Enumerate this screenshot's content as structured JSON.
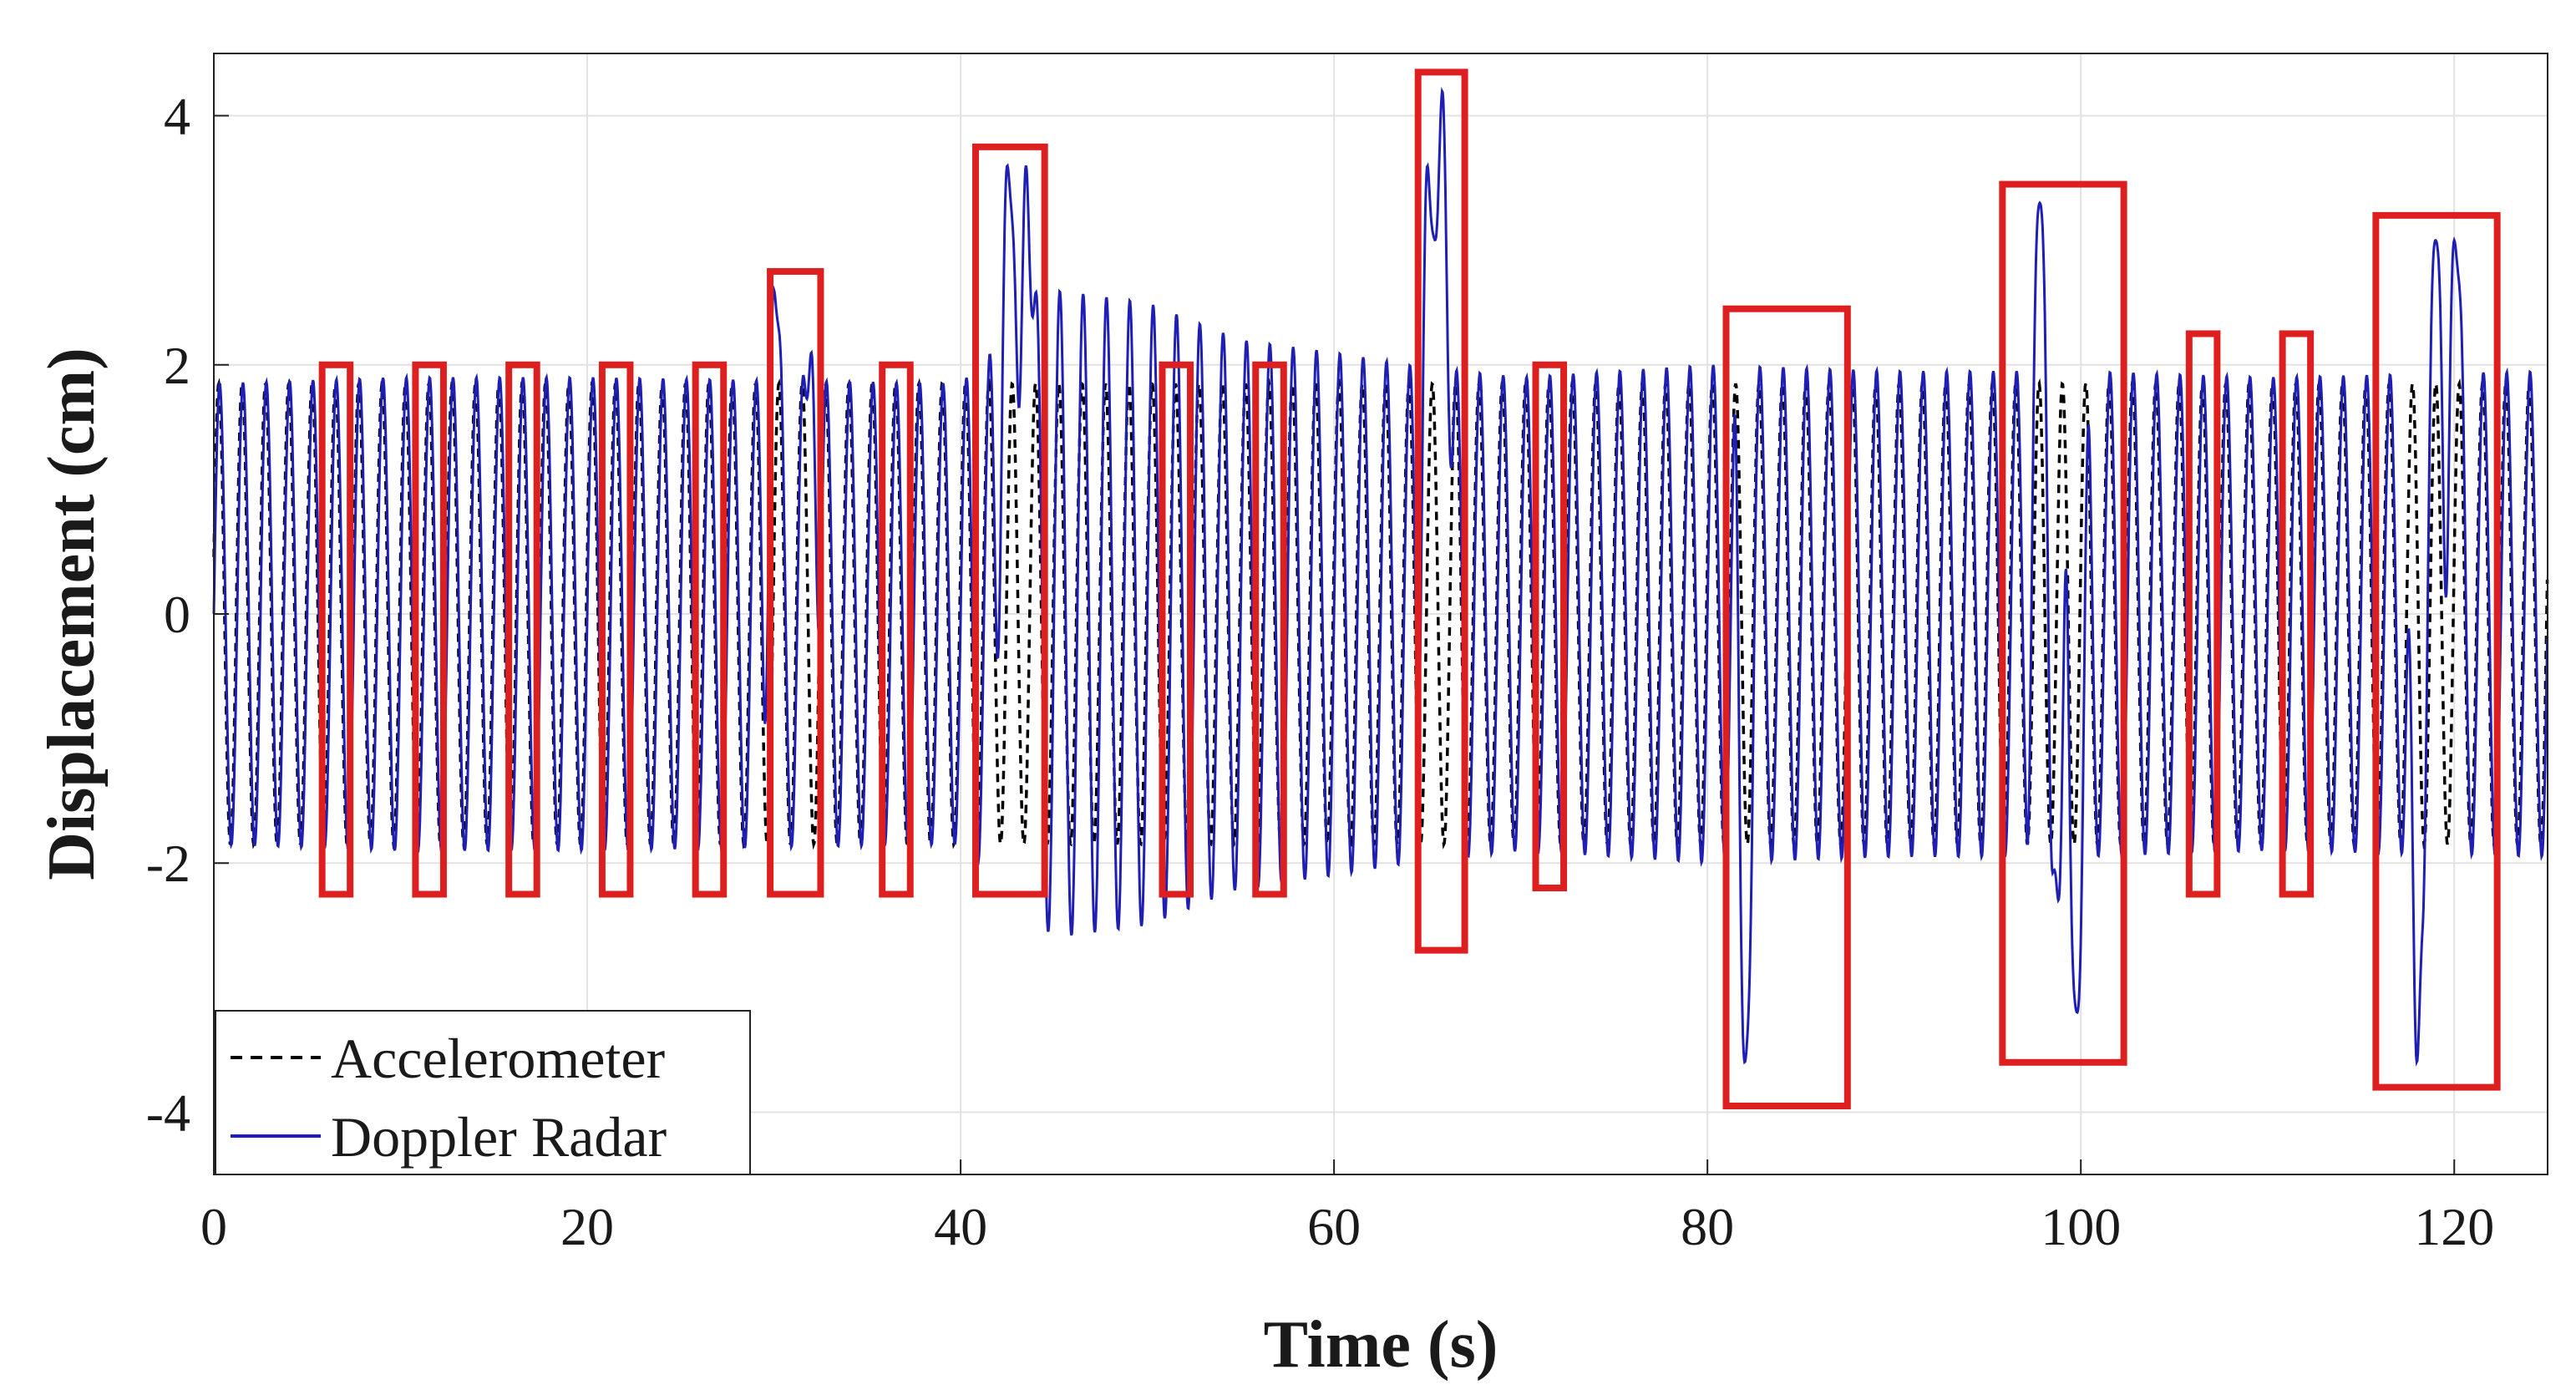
{
  "chart_data": {
    "type": "line",
    "title": "",
    "xlabel": "Time (s)",
    "ylabel": "Displacement (cm)",
    "xlim": [
      0,
      125
    ],
    "ylim": [
      -4.5,
      4.5
    ],
    "xticks": [
      0,
      20,
      40,
      60,
      80,
      100,
      120
    ],
    "xtick_labels": [
      "0",
      "20",
      "40",
      "60",
      "80",
      "100",
      "120"
    ],
    "yticks": [
      -4,
      -2,
      0,
      2,
      4
    ],
    "ytick_labels": [
      "-4",
      "-2",
      "0",
      "2",
      "4"
    ],
    "grid": true,
    "legend_position": "bottom-left",
    "oscillation_period_s": 1.25,
    "series": [
      {
        "name": "Accelerometer",
        "color": "#000000",
        "style": "dashed",
        "envelope": [
          {
            "t": 0,
            "amp": 1.85
          },
          {
            "t": 20,
            "amp": 1.85
          },
          {
            "t": 40,
            "amp": 1.85
          },
          {
            "t": 60,
            "amp": 1.85
          },
          {
            "t": 80,
            "amp": 1.85
          },
          {
            "t": 100,
            "amp": 1.85
          },
          {
            "t": 125,
            "amp": 1.85
          }
        ],
        "bursts": []
      },
      {
        "name": "Doppler Radar",
        "color": "#1f1fb4",
        "style": "solid",
        "envelope": [
          {
            "t": 0,
            "amp": 1.85
          },
          {
            "t": 10,
            "amp": 1.9
          },
          {
            "t": 20,
            "amp": 1.9
          },
          {
            "t": 40,
            "amp": 1.85
          },
          {
            "t": 45,
            "amp": 2.6
          },
          {
            "t": 50,
            "amp": 2.5
          },
          {
            "t": 55,
            "amp": 2.2
          },
          {
            "t": 60,
            "amp": 2.1
          },
          {
            "t": 64,
            "amp": 2.0
          },
          {
            "t": 70,
            "amp": 1.9
          },
          {
            "t": 80,
            "amp": 2.0
          },
          {
            "t": 90,
            "amp": 1.95
          },
          {
            "t": 100,
            "amp": 1.95
          },
          {
            "t": 110,
            "amp": 1.9
          },
          {
            "t": 125,
            "amp": 1.95
          }
        ],
        "bursts": [
          {
            "t": 30.0,
            "width": 0.6,
            "value": 2.6
          },
          {
            "t": 32.0,
            "width": 0.6,
            "value": 2.1
          },
          {
            "t": 42.5,
            "width": 0.7,
            "value": 3.6
          },
          {
            "t": 43.5,
            "width": 0.7,
            "value": 3.6
          },
          {
            "t": 65.0,
            "width": 0.6,
            "value": 3.6
          },
          {
            "t": 65.8,
            "width": 0.7,
            "value": 4.2
          },
          {
            "t": 82.0,
            "width": 0.6,
            "value": -3.6
          },
          {
            "t": 97.8,
            "width": 0.7,
            "value": 3.3
          },
          {
            "t": 98.8,
            "width": 0.6,
            "value": -2.3
          },
          {
            "t": 99.8,
            "width": 0.7,
            "value": -3.2
          },
          {
            "t": 118.0,
            "width": 0.6,
            "value": -3.6
          },
          {
            "t": 119.0,
            "width": 0.7,
            "value": 3.0
          },
          {
            "t": 120.0,
            "width": 0.7,
            "value": 3.0
          }
        ]
      }
    ],
    "annotations": [
      {
        "type": "box",
        "color": "#dd1f1f",
        "x0": 5.8,
        "x1": 7.3,
        "y0": -2.25,
        "y1": 2.0
      },
      {
        "type": "box",
        "color": "#dd1f1f",
        "x0": 10.8,
        "x1": 12.3,
        "y0": -2.25,
        "y1": 2.0
      },
      {
        "type": "box",
        "color": "#dd1f1f",
        "x0": 15.8,
        "x1": 17.3,
        "y0": -2.25,
        "y1": 2.0
      },
      {
        "type": "box",
        "color": "#dd1f1f",
        "x0": 20.8,
        "x1": 22.3,
        "y0": -2.25,
        "y1": 2.0
      },
      {
        "type": "box",
        "color": "#dd1f1f",
        "x0": 25.8,
        "x1": 27.3,
        "y0": -2.25,
        "y1": 2.0
      },
      {
        "type": "box",
        "color": "#dd1f1f",
        "x0": 29.8,
        "x1": 32.5,
        "y0": -2.25,
        "y1": 2.75
      },
      {
        "type": "box",
        "color": "#dd1f1f",
        "x0": 35.8,
        "x1": 37.3,
        "y0": -2.25,
        "y1": 2.0
      },
      {
        "type": "box",
        "color": "#dd1f1f",
        "x0": 40.8,
        "x1": 44.5,
        "y0": -2.25,
        "y1": 3.75
      },
      {
        "type": "box",
        "color": "#dd1f1f",
        "x0": 50.8,
        "x1": 52.3,
        "y0": -2.25,
        "y1": 2.0
      },
      {
        "type": "box",
        "color": "#dd1f1f",
        "x0": 55.8,
        "x1": 57.3,
        "y0": -2.25,
        "y1": 2.0
      },
      {
        "type": "box",
        "color": "#dd1f1f",
        "x0": 64.5,
        "x1": 67.0,
        "y0": -2.7,
        "y1": 4.35
      },
      {
        "type": "box",
        "color": "#dd1f1f",
        "x0": 70.8,
        "x1": 72.3,
        "y0": -2.2,
        "y1": 2.0
      },
      {
        "type": "box",
        "color": "#dd1f1f",
        "x0": 81.0,
        "x1": 87.5,
        "y0": -3.95,
        "y1": 2.45
      },
      {
        "type": "box",
        "color": "#dd1f1f",
        "x0": 95.8,
        "x1": 102.3,
        "y0": -3.6,
        "y1": 3.45
      },
      {
        "type": "box",
        "color": "#dd1f1f",
        "x0": 105.8,
        "x1": 107.3,
        "y0": -2.25,
        "y1": 2.25
      },
      {
        "type": "box",
        "color": "#dd1f1f",
        "x0": 110.8,
        "x1": 112.3,
        "y0": -2.25,
        "y1": 2.25
      },
      {
        "type": "box",
        "color": "#dd1f1f",
        "x0": 115.8,
        "x1": 122.3,
        "y0": -3.8,
        "y1": 3.2
      }
    ]
  }
}
